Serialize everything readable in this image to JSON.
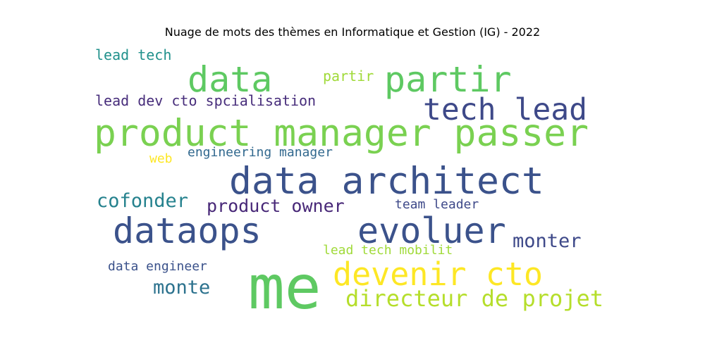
{
  "chart_data": {
    "type": "wordcloud",
    "title": "Nuage de mots des thèmes en Informatique et Gestion (IG) - 2022",
    "words": [
      {
        "text": "me",
        "weight": 100,
        "color": "#5ec962"
      },
      {
        "text": "product manager passer",
        "weight": 62,
        "color": "#7ad151"
      },
      {
        "text": "data architect",
        "weight": 62,
        "color": "#3b528b"
      },
      {
        "text": "data",
        "weight": 58,
        "color": "#5ec962"
      },
      {
        "text": "partir",
        "weight": 58,
        "color": "#5ec962"
      },
      {
        "text": "dataops",
        "weight": 58,
        "color": "#3b528b"
      },
      {
        "text": "evoluer",
        "weight": 58,
        "color": "#3b528b"
      },
      {
        "text": "devenir cto",
        "weight": 52,
        "color": "#fde725"
      },
      {
        "text": "tech lead",
        "weight": 50,
        "color": "#3e4989"
      },
      {
        "text": "directeur de projet",
        "weight": 37,
        "color": "#b5de2b"
      },
      {
        "text": "monte",
        "weight": 31,
        "color": "#2c728e"
      },
      {
        "text": "cofonder",
        "weight": 31,
        "color": "#26828e"
      },
      {
        "text": "monter",
        "weight": 31,
        "color": "#3e4989"
      },
      {
        "text": "product owner",
        "weight": 29,
        "color": "#482878"
      },
      {
        "text": "lead tech",
        "weight": 23,
        "color": "#21918c"
      },
      {
        "text": "partir",
        "weight": 23,
        "color": "#a0da39"
      },
      {
        "text": "lead dev cto spcialisation",
        "weight": 23,
        "color": "#472d7b"
      },
      {
        "text": "engineering manager",
        "weight": 21,
        "color": "#31688e"
      },
      {
        "text": "web",
        "weight": 21,
        "color": "#fde725"
      },
      {
        "text": "team leader",
        "weight": 21,
        "color": "#3e4989"
      },
      {
        "text": "lead tech mobilit",
        "weight": 21,
        "color": "#a0da39"
      },
      {
        "text": "data engineer",
        "weight": 21,
        "color": "#3b528b"
      }
    ]
  }
}
